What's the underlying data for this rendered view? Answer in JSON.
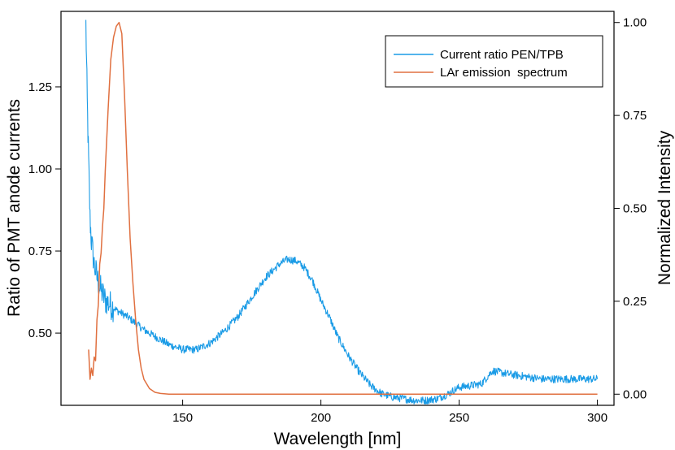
{
  "chart_data": {
    "type": "line",
    "xlabel": "Wavelength [nm]",
    "ylabel_left": "Ratio of PMT anode currents",
    "ylabel_right": "Normalized Intensity",
    "xlim": [
      106,
      306
    ],
    "ylim_left": [
      0.28,
      1.48
    ],
    "ylim_right": [
      -0.03,
      1.03
    ],
    "x_ticks": [
      150,
      200,
      250,
      300
    ],
    "x_tick_labels": [
      "150",
      "200",
      "250",
      "300"
    ],
    "y_left_ticks": [
      0.5,
      0.75,
      1.0,
      1.25
    ],
    "y_left_tick_labels": [
      "0.50",
      "0.75",
      "1.00",
      "1.25"
    ],
    "y_right_ticks": [
      0,
      0.25,
      0.5,
      0.75,
      1.0
    ],
    "y_right_tick_labels": [
      "0.00",
      "0.25",
      "0.50",
      "0.75",
      "1.00"
    ],
    "legend_position": "top-right",
    "series": [
      {
        "name": "Current ratio PEN/TPB",
        "axis": "left",
        "color": "#1a9be6",
        "x": [
          115,
          115.5,
          116,
          116.5,
          117,
          118,
          119,
          120,
          121,
          122,
          124,
          126,
          128,
          130,
          133,
          136,
          140,
          145,
          150,
          155,
          160,
          165,
          170,
          175,
          180,
          185,
          188,
          191,
          194,
          197,
          200,
          203,
          206,
          210,
          214,
          218,
          222,
          226,
          230,
          234,
          238,
          242,
          246,
          250,
          254,
          258,
          262,
          265,
          268,
          272,
          276,
          280,
          285,
          290,
          295,
          300
        ],
        "y": [
          1.44,
          1.2,
          1.02,
          0.85,
          0.78,
          0.71,
          0.67,
          0.64,
          0.62,
          0.6,
          0.585,
          0.57,
          0.56,
          0.55,
          0.53,
          0.51,
          0.49,
          0.465,
          0.45,
          0.45,
          0.47,
          0.505,
          0.55,
          0.61,
          0.67,
          0.71,
          0.725,
          0.72,
          0.7,
          0.66,
          0.6,
          0.55,
          0.49,
          0.43,
          0.38,
          0.34,
          0.315,
          0.305,
          0.3,
          0.295,
          0.295,
          0.3,
          0.315,
          0.335,
          0.34,
          0.345,
          0.385,
          0.38,
          0.375,
          0.37,
          0.365,
          0.36,
          0.36,
          0.36,
          0.36,
          0.36
        ]
      },
      {
        "name": "LAr emission  spectrum",
        "axis": "right",
        "color": "#e07040",
        "x": [
          116,
          116.5,
          117,
          117.5,
          118,
          118.5,
          119,
          119.5,
          120,
          120.5,
          121,
          121.5,
          122,
          123,
          124,
          125,
          126,
          127,
          128,
          129,
          130,
          131,
          132,
          133,
          134,
          135,
          136,
          138,
          140,
          142,
          145,
          150,
          160,
          180,
          200,
          250,
          300
        ],
        "y": [
          0.12,
          0.04,
          0.07,
          0.05,
          0.1,
          0.09,
          0.2,
          0.24,
          0.35,
          0.38,
          0.45,
          0.5,
          0.6,
          0.76,
          0.9,
          0.96,
          0.99,
          1.0,
          0.97,
          0.8,
          0.6,
          0.42,
          0.3,
          0.2,
          0.12,
          0.07,
          0.04,
          0.015,
          0.005,
          0.002,
          0,
          0,
          0,
          0,
          0,
          0,
          0
        ]
      }
    ]
  }
}
